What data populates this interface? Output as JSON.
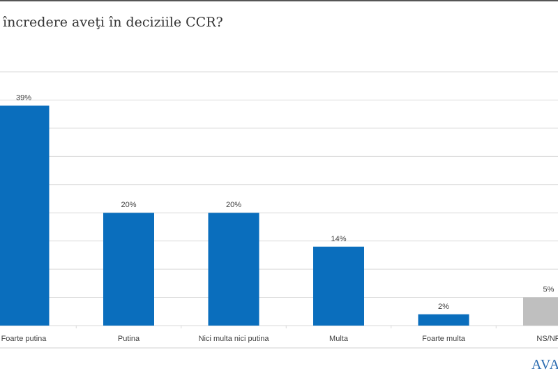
{
  "title": "încredere aveţi în deciziile CCR?",
  "logo_text": "AVAN",
  "chart_data": {
    "type": "bar",
    "title": "încredere aveţi în deciziile CCR?",
    "categories": [
      "Foarte putina",
      "Putina",
      "Nici multa nici putina",
      "Multa",
      "Foarte multa",
      "NS/NR"
    ],
    "values": [
      39,
      20,
      20,
      14,
      2,
      5
    ],
    "data_labels": [
      "39%",
      "20%",
      "20%",
      "14%",
      "2%",
      "5%"
    ],
    "colors": [
      "#0a6ebd",
      "#0a6ebd",
      "#0a6ebd",
      "#0a6ebd",
      "#0a6ebd",
      "#bfbfbf"
    ],
    "ylim": [
      0,
      45
    ],
    "grid": true,
    "xlabel": "",
    "ylabel": ""
  }
}
